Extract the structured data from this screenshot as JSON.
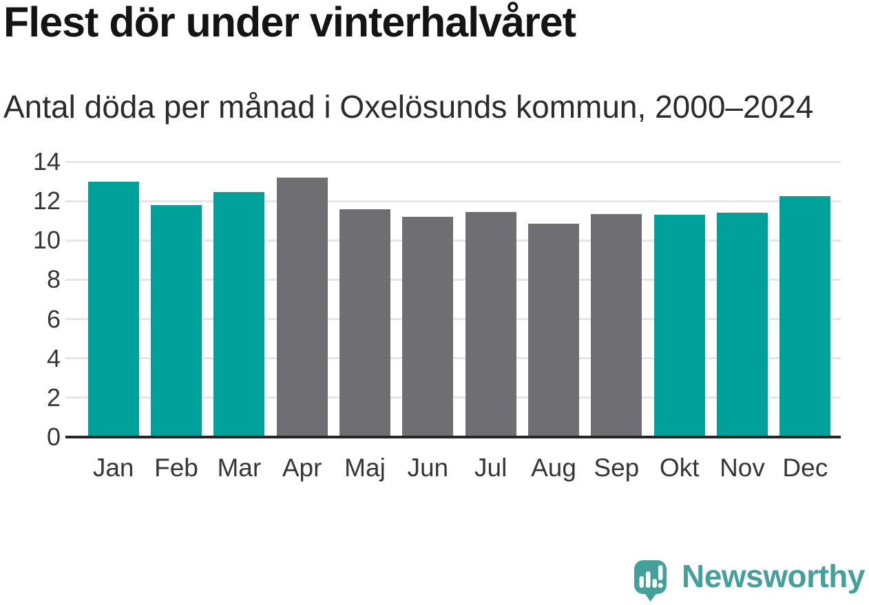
{
  "title": "Flest dör under vinterhalvåret",
  "subtitle": "Antal döda per månad i Oxelösunds kommun, 2000–2024",
  "branding": {
    "logo_text": "Newsworthy"
  },
  "colors": {
    "highlight": "#00a19b",
    "neutral": "#6e6e73",
    "axis": "#262626",
    "gridline": "#e6e6e8",
    "title_text": "#141414",
    "subtitle_text": "#2b2b2b",
    "tick_text": "#363636",
    "brand": "#43a09a"
  },
  "chart_data": {
    "type": "bar",
    "title": "Flest dör under vinterhalvåret",
    "subtitle": "Antal döda per månad i Oxelösunds kommun, 2000–2024",
    "categories": [
      "Jan",
      "Feb",
      "Mar",
      "Apr",
      "Maj",
      "Jun",
      "Jul",
      "Aug",
      "Sep",
      "Okt",
      "Nov",
      "Dec"
    ],
    "values": [
      13.0,
      11.8,
      12.45,
      13.2,
      11.6,
      11.2,
      11.45,
      10.85,
      11.35,
      11.3,
      11.4,
      12.25
    ],
    "highlighted": [
      true,
      true,
      true,
      false,
      false,
      false,
      false,
      false,
      false,
      true,
      true,
      true
    ],
    "xlabel": "",
    "ylabel": "",
    "ylim": [
      0,
      14
    ],
    "yticks": [
      0,
      2,
      4,
      6,
      8,
      10,
      12,
      14
    ],
    "grid": "horizontal",
    "legend": "none"
  }
}
